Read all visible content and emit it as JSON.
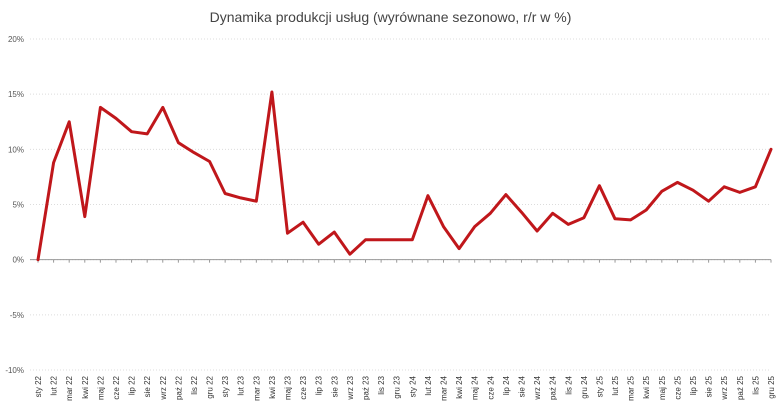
{
  "chart_data": {
    "type": "line",
    "title": "Dynamika produkcji usług (wyrównane sezonowo, r/r w %)",
    "xlabel": "",
    "ylabel": "",
    "ylim": [
      -10,
      20
    ],
    "ytick_step": 5,
    "y_tick_suffix": "%",
    "grid": true,
    "legend": "none",
    "line_color": "#c0171b",
    "categories": [
      "sty 22",
      "lut 22",
      "mar 22",
      "kwi 22",
      "maj 22",
      "cze 22",
      "lip 22",
      "sie 22",
      "wrz 22",
      "paź 22",
      "lis 22",
      "gru 22",
      "sty 23",
      "lut 23",
      "mar 23",
      "kwi 23",
      "maj 23",
      "cze 23",
      "lip 23",
      "sie 23",
      "wrz 23",
      "paź 23",
      "lis 23",
      "gru 23",
      "sty 24",
      "lut 24",
      "mar 24",
      "kwi 24",
      "maj 24",
      "cze 24",
      "lip 24",
      "sie 24",
      "wrz 24",
      "paź 24",
      "lis 24",
      "gru 24",
      "sty 25",
      "lut 25",
      "mar 25",
      "kwi 25",
      "maj 25",
      "cze 25",
      "lip 25",
      "sie 25",
      "wrz 25",
      "paź 25",
      "lis 25",
      "gru 25"
    ],
    "series": [
      {
        "values": [
          0.0,
          8.8,
          12.5,
          3.9,
          13.8,
          12.8,
          11.6,
          11.4,
          13.8,
          10.6,
          9.7,
          8.9,
          6.0,
          5.6,
          5.3,
          15.2,
          2.4,
          3.4,
          1.4,
          2.5,
          0.5,
          1.8,
          1.8,
          1.8,
          1.8,
          5.8,
          3.0,
          1.0,
          3.0,
          4.2,
          5.9,
          4.3,
          2.6,
          4.2,
          3.2,
          3.8,
          6.7,
          3.7,
          3.6,
          4.5,
          6.2,
          7.0,
          6.3,
          5.3,
          6.6,
          6.1,
          6.6,
          10.0
        ]
      }
    ]
  }
}
